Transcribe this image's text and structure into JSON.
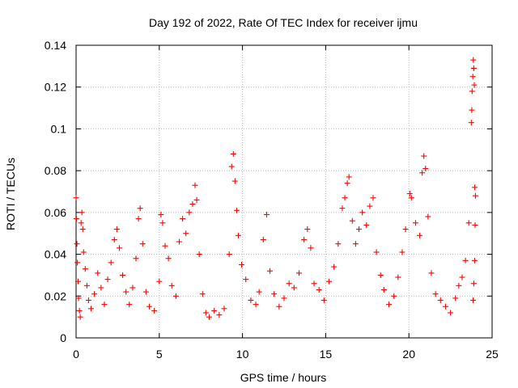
{
  "chart_data": {
    "type": "scatter",
    "title": "Day 192 of 2022, Rate Of TEC Index for receiver ijmu",
    "xlabel": "GPS time / hours",
    "ylabel": "ROTI / TECUs",
    "xlim": [
      0,
      25
    ],
    "ylim": [
      0,
      0.14
    ],
    "xticks": [
      0,
      5,
      10,
      15,
      20,
      25
    ],
    "yticks": [
      0,
      0.02,
      0.04,
      0.06,
      0.08,
      0.1,
      0.12,
      0.14
    ],
    "ytick_labels": [
      "0",
      "0.02",
      "0.04",
      "0.06",
      "0.08",
      "0.1",
      "0.12",
      "0.14"
    ],
    "grid": true,
    "marker": "+",
    "marker_color": "#ff0000",
    "series": [
      {
        "points": [
          [
            0.0,
            0.067
          ],
          [
            0.02,
            0.057
          ],
          [
            0.05,
            0.045
          ],
          [
            0.08,
            0.036
          ],
          [
            0.12,
            0.027
          ],
          [
            0.15,
            0.019
          ],
          [
            0.2,
            0.013
          ],
          [
            0.25,
            0.01
          ],
          [
            0.3,
            0.055
          ],
          [
            0.35,
            0.06
          ],
          [
            0.4,
            0.052
          ],
          [
            0.45,
            0.041
          ],
          [
            0.55,
            0.033
          ],
          [
            0.65,
            0.025
          ],
          [
            0.75,
            0.018
          ],
          [
            0.9,
            0.014
          ],
          [
            1.1,
            0.021
          ],
          [
            1.3,
            0.031
          ],
          [
            1.5,
            0.024
          ],
          [
            1.7,
            0.016
          ],
          [
            1.9,
            0.028
          ],
          [
            2.1,
            0.036
          ],
          [
            2.3,
            0.047
          ],
          [
            2.45,
            0.052
          ],
          [
            2.6,
            0.043
          ],
          [
            2.8,
            0.03
          ],
          [
            3.0,
            0.022
          ],
          [
            3.2,
            0.016
          ],
          [
            3.4,
            0.024
          ],
          [
            3.6,
            0.038
          ],
          [
            3.75,
            0.057
          ],
          [
            3.85,
            0.062
          ],
          [
            4.0,
            0.045
          ],
          [
            4.2,
            0.022
          ],
          [
            4.4,
            0.015
          ],
          [
            4.7,
            0.013
          ],
          [
            5.0,
            0.027
          ],
          [
            5.1,
            0.059
          ],
          [
            5.2,
            0.055
          ],
          [
            5.35,
            0.044
          ],
          [
            5.55,
            0.038
          ],
          [
            5.75,
            0.025
          ],
          [
            6.0,
            0.02
          ],
          [
            6.2,
            0.046
          ],
          [
            6.4,
            0.057
          ],
          [
            6.6,
            0.05
          ],
          [
            6.8,
            0.06
          ],
          [
            7.0,
            0.064
          ],
          [
            7.15,
            0.073
          ],
          [
            7.25,
            0.066
          ],
          [
            7.4,
            0.04
          ],
          [
            7.6,
            0.021
          ],
          [
            7.8,
            0.012
          ],
          [
            8.0,
            0.01
          ],
          [
            8.3,
            0.013
          ],
          [
            8.6,
            0.011
          ],
          [
            8.9,
            0.014
          ],
          [
            9.2,
            0.04
          ],
          [
            9.35,
            0.082
          ],
          [
            9.45,
            0.088
          ],
          [
            9.55,
            0.075
          ],
          [
            9.65,
            0.061
          ],
          [
            9.75,
            0.049
          ],
          [
            9.95,
            0.035
          ],
          [
            10.2,
            0.028
          ],
          [
            10.5,
            0.018
          ],
          [
            10.8,
            0.016
          ],
          [
            11.0,
            0.022
          ],
          [
            11.25,
            0.047
          ],
          [
            11.45,
            0.059
          ],
          [
            11.65,
            0.032
          ],
          [
            11.9,
            0.021
          ],
          [
            12.2,
            0.015
          ],
          [
            12.5,
            0.019
          ],
          [
            12.8,
            0.026
          ],
          [
            13.1,
            0.024
          ],
          [
            13.4,
            0.031
          ],
          [
            13.7,
            0.047
          ],
          [
            13.9,
            0.052
          ],
          [
            14.1,
            0.043
          ],
          [
            14.3,
            0.026
          ],
          [
            14.6,
            0.023
          ],
          [
            14.9,
            0.018
          ],
          [
            15.2,
            0.027
          ],
          [
            15.5,
            0.034
          ],
          [
            15.75,
            0.045
          ],
          [
            16.0,
            0.062
          ],
          [
            16.15,
            0.067
          ],
          [
            16.3,
            0.074
          ],
          [
            16.4,
            0.077
          ],
          [
            16.6,
            0.056
          ],
          [
            16.8,
            0.045
          ],
          [
            17.0,
            0.052
          ],
          [
            17.2,
            0.06
          ],
          [
            17.45,
            0.054
          ],
          [
            17.65,
            0.063
          ],
          [
            17.85,
            0.067
          ],
          [
            18.05,
            0.041
          ],
          [
            18.3,
            0.03
          ],
          [
            18.5,
            0.023
          ],
          [
            18.8,
            0.016
          ],
          [
            19.1,
            0.02
          ],
          [
            19.35,
            0.029
          ],
          [
            19.6,
            0.041
          ],
          [
            19.8,
            0.052
          ],
          [
            20.05,
            0.069
          ],
          [
            20.15,
            0.067
          ],
          [
            20.4,
            0.055
          ],
          [
            20.65,
            0.049
          ],
          [
            20.8,
            0.079
          ],
          [
            20.9,
            0.087
          ],
          [
            21.0,
            0.081
          ],
          [
            21.15,
            0.058
          ],
          [
            21.35,
            0.031
          ],
          [
            21.6,
            0.021
          ],
          [
            21.9,
            0.018
          ],
          [
            22.2,
            0.015
          ],
          [
            22.5,
            0.012
          ],
          [
            22.8,
            0.019
          ],
          [
            23.0,
            0.025
          ],
          [
            23.2,
            0.029
          ],
          [
            23.4,
            0.037
          ],
          [
            23.6,
            0.055
          ],
          [
            23.75,
            0.103
          ],
          [
            23.78,
            0.109
          ],
          [
            23.8,
            0.118
          ],
          [
            23.84,
            0.125
          ],
          [
            23.87,
            0.133
          ],
          [
            23.9,
            0.129
          ],
          [
            23.93,
            0.121
          ],
          [
            23.96,
            0.072
          ],
          [
            24.0,
            0.068
          ],
          [
            23.98,
            0.054
          ],
          [
            23.95,
            0.037
          ],
          [
            23.9,
            0.026
          ],
          [
            23.86,
            0.018
          ]
        ]
      }
    ]
  }
}
